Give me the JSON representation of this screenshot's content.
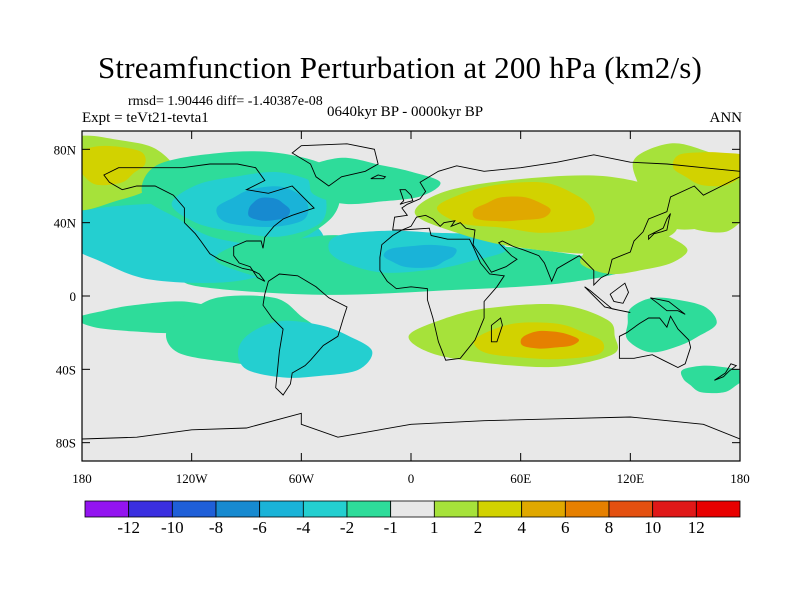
{
  "chart_data": {
    "type": "heatmap",
    "title": "Streamfunction Perturbation at 200 hPa (km2/s)",
    "stats": "rmsd= 1.90446 diff= -1.40387e-08",
    "left_label": "Expt = teVt21-tevta1",
    "center_label": "0640kyr BP - 0000kyr BP",
    "right_label": "ANN",
    "lon_range": [
      -180,
      180
    ],
    "lat_range": [
      -90,
      90
    ],
    "x_ticks": [
      {
        "value": -180,
        "label": "180"
      },
      {
        "value": -120,
        "label": "120W"
      },
      {
        "value": -60,
        "label": "60W"
      },
      {
        "value": 0,
        "label": "0"
      },
      {
        "value": 60,
        "label": "60E"
      },
      {
        "value": 120,
        "label": "120E"
      },
      {
        "value": 180,
        "label": "180"
      }
    ],
    "y_ticks": [
      {
        "value": 80,
        "label": "80N"
      },
      {
        "value": 40,
        "label": "40N"
      },
      {
        "value": 0,
        "label": "0"
      },
      {
        "value": -40,
        "label": "40S"
      },
      {
        "value": -80,
        "label": "80S"
      }
    ],
    "colorbar": {
      "levels": [
        "-12",
        "-10",
        "-8",
        "-6",
        "-4",
        "-2",
        "-1",
        "1",
        "2",
        "4",
        "6",
        "8",
        "10",
        "12"
      ],
      "colors": [
        "#9314f0",
        "#3a2fe0",
        "#1f5fd8",
        "#178ad0",
        "#1ab3d8",
        "#24cfd0",
        "#2edc9a",
        "#e8e8e8",
        "#a6e23a",
        "#d2d200",
        "#e0a800",
        "#e68000",
        "#e45010",
        "#e01818",
        "#e80000"
      ]
    },
    "features": [
      {
        "name": "Pacific high-lat positive",
        "lon": -170,
        "lat": 65,
        "value": 4
      },
      {
        "name": "North America negative core",
        "lon": -80,
        "lat": 48,
        "value": -7
      },
      {
        "name": "Canada negative",
        "lon": -100,
        "lat": 58,
        "value": -4
      },
      {
        "name": "North Atlantic ridge",
        "lon": -45,
        "lat": 38,
        "value": 1
      },
      {
        "name": "North Pacific negative",
        "lon": -140,
        "lat": 40,
        "value": -2
      },
      {
        "name": "Atlantic tropical negative",
        "lon": -40,
        "lat": 22,
        "value": -2
      },
      {
        "name": "Africa negative",
        "lon": 0,
        "lat": 25,
        "value": -4
      },
      {
        "name": "Eurasia positive",
        "lon": 60,
        "lat": 48,
        "value": 5
      },
      {
        "name": "Asia positive",
        "lon": 120,
        "lat": 30,
        "value": 3
      },
      {
        "name": "Arctic Siberia positive",
        "lon": 160,
        "lat": 68,
        "value": 4
      },
      {
        "name": "Indian Ocean positive",
        "lon": 70,
        "lat": -25,
        "value": 6
      },
      {
        "name": "South America negative",
        "lon": -65,
        "lat": -25,
        "value": -4
      },
      {
        "name": "Tropical Pacific negative",
        "lon": -140,
        "lat": -5,
        "value": -2
      },
      {
        "name": "Australia negative",
        "lon": 140,
        "lat": -20,
        "value": -2
      },
      {
        "name": "SW Pacific negative",
        "lon": 165,
        "lat": -45,
        "value": -2
      }
    ]
  }
}
